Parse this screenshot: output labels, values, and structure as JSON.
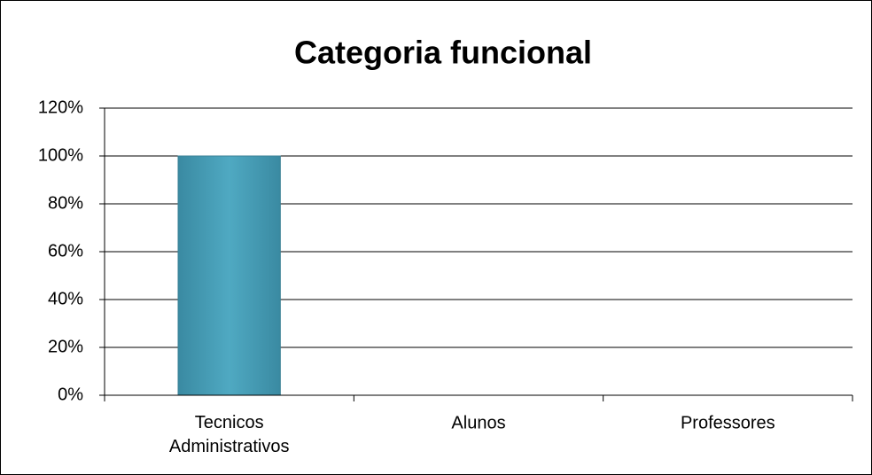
{
  "chart_data": {
    "type": "bar",
    "title": "Categoria funcional",
    "categories": [
      "Tecnicos Administrativos",
      "Alunos",
      "Professores"
    ],
    "values": [
      100,
      0,
      0
    ],
    "color": "#4ba3bb",
    "ylim": [
      0,
      120
    ],
    "yticks": [
      {
        "value": 0,
        "label": "0%"
      },
      {
        "value": 20,
        "label": "20%"
      },
      {
        "value": 40,
        "label": "40%"
      },
      {
        "value": 60,
        "label": "60%"
      },
      {
        "value": 80,
        "label": "80%"
      },
      {
        "value": 100,
        "label": "100%"
      },
      {
        "value": 120,
        "label": "120%"
      }
    ],
    "grid": true
  }
}
